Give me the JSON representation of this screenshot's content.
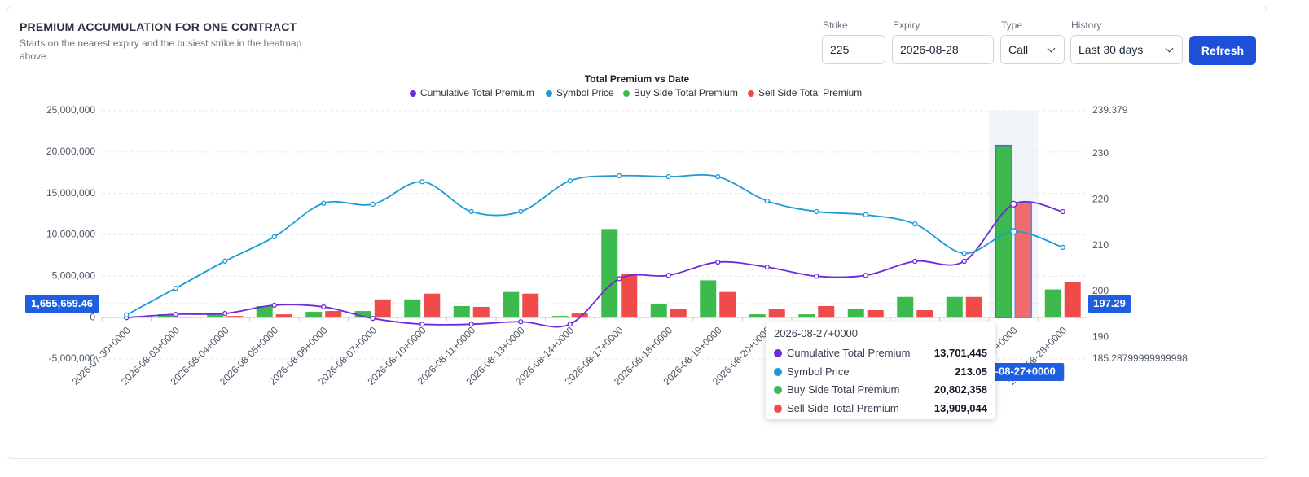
{
  "header": {
    "title": "PREMIUM ACCUMULATION FOR ONE CONTRACT",
    "subtitle": "Starts on the nearest expiry and the busiest strike in the heatmap above."
  },
  "controls": {
    "strike": {
      "label": "Strike",
      "value": "225"
    },
    "expiry": {
      "label": "Expiry",
      "value": "2026-08-28"
    },
    "type": {
      "label": "Type",
      "value": "Call"
    },
    "history": {
      "label": "History",
      "value": "Last 30 days"
    },
    "button": "Refresh"
  },
  "chart_data": {
    "type": "combo",
    "title": "Total Premium vs Date",
    "categories": [
      "2026-07-30+0000",
      "2026-08-03+0000",
      "2026-08-04+0000",
      "2026-08-05+0000",
      "2026-08-06+0000",
      "2026-08-07+0000",
      "2026-08-10+0000",
      "2026-08-11+0000",
      "2026-08-13+0000",
      "2026-08-14+0000",
      "2026-08-17+0000",
      "2026-08-18+0000",
      "2026-08-19+0000",
      "2026-08-20+0000",
      null,
      null,
      null,
      null,
      "2026-08-27+0000",
      "2026-08-28+0000"
    ],
    "series": [
      {
        "name": "Cumulative Total Premium",
        "type": "line",
        "color": "#6d2bd9",
        "values": [
          0,
          400000,
          500000,
          1500000,
          1300000,
          -100000,
          -800000,
          -800000,
          -500000,
          -800000,
          4700000,
          5100000,
          6700000,
          6100000,
          5000000,
          5100000,
          6800000,
          6800000,
          13701445,
          12800000
        ]
      },
      {
        "name": "Symbol Price",
        "type": "line",
        "axis": "y2",
        "color": "#1e9ad6",
        "values": [
          194.9,
          200.7,
          206.6,
          211.9,
          219.2,
          219.0,
          223.9,
          217.4,
          217.4,
          224.1,
          225.2,
          225.0,
          225.0,
          219.7,
          217.4,
          216.7,
          214.7,
          208.3,
          213.05,
          209.6
        ]
      },
      {
        "name": "Buy Side Total Premium",
        "type": "bar",
        "color": "#3dba4e",
        "values": [
          0,
          400000,
          400000,
          1400000,
          700000,
          800000,
          2200000,
          1400000,
          3100000,
          200000,
          10700000,
          1600000,
          4500000,
          400000,
          400000,
          1000000,
          2500000,
          2500000,
          20802358,
          3400000
        ]
      },
      {
        "name": "Sell Side Total Premium",
        "type": "bar",
        "color": "#f04b4b",
        "values": [
          0,
          100000,
          200000,
          400000,
          800000,
          2200000,
          2900000,
          1300000,
          2900000,
          500000,
          5300000,
          1100000,
          3100000,
          1000000,
          1400000,
          900000,
          900000,
          2500000,
          13909044,
          4300000
        ]
      }
    ],
    "ylim": [
      -5000000,
      25000000
    ],
    "yticks": [
      {
        "value": -5000000,
        "label": "-5,000,000"
      },
      0,
      {
        "value": 5000000,
        "label": "5,000,000"
      },
      {
        "value": 10000000,
        "label": "10,000,000"
      },
      {
        "value": 15000000,
        "label": "15,000,000"
      },
      {
        "value": 20000000,
        "label": "20,000,000"
      },
      {
        "value": 25000000,
        "label": "25,000,000"
      }
    ],
    "y2lim": [
      185.28799999999998,
      239.379
    ],
    "y2ticks": [
      185.28799999999998,
      190,
      200,
      210,
      220,
      230,
      239.379
    ],
    "grid": true,
    "crosshair": {
      "y": {
        "value": 1655659.46,
        "label": "1,655,659.46"
      },
      "y2": 197.29
    },
    "tooltip": {
      "index": 18,
      "value_labels": [
        "13,701,445",
        "213.05",
        "20,802,358",
        "13,909,044"
      ]
    }
  }
}
